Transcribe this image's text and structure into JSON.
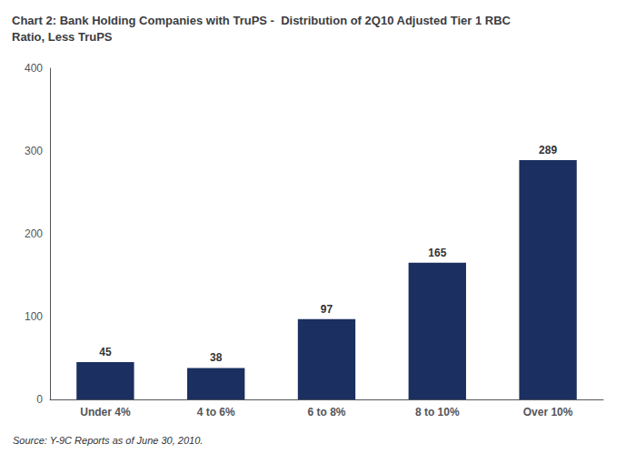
{
  "chart_data": {
    "type": "bar",
    "title": "Chart 2: Bank Holding Companies with TruPS -  Distribution of 2Q10 Adjusted Tier 1 RBC\nRatio, Less TruPS",
    "annotations": [
      "Source: Y-9C Reports as of June 30, 2010."
    ],
    "categories": [
      "Under 4%",
      "4 to 6%",
      "6 to 8%",
      "8 to 10%",
      "Over 10%"
    ],
    "values": [
      45,
      38,
      97,
      165,
      289
    ],
    "color": "#1b2f60",
    "ylim": [
      0,
      400
    ],
    "yticks": [
      0,
      100,
      200,
      300,
      400
    ],
    "grid": false,
    "data_labels": true
  }
}
